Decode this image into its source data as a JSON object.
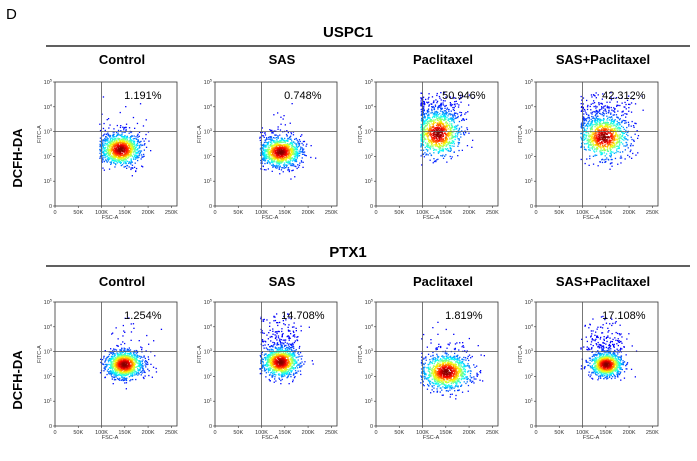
{
  "panel_letter": "D",
  "y_channel_label": "DCFH-DA",
  "colors": {
    "frame": "#333333",
    "gate": "#555555",
    "text": "#000000"
  },
  "chart_data": [
    {
      "type": "scatter",
      "group": "USPC1",
      "xlabel": "FSC-A",
      "ylabel": "FITC-A",
      "xticks": [
        "0",
        "50K",
        "100K",
        "150K",
        "200K",
        "250K"
      ],
      "yticks": [
        "0",
        "10^1",
        "10^2",
        "10^3",
        "10^4",
        "10^5"
      ],
      "xlim": [
        0,
        262144
      ],
      "plots": [
        {
          "condition": "Control",
          "percent": "1.191%",
          "cluster": {
            "x": 140000,
            "y_log": 2.3,
            "sx": 22000,
            "sy_log": 0.32,
            "tail": 0.03
          }
        },
        {
          "condition": "SAS",
          "percent": "0.748%",
          "cluster": {
            "x": 140000,
            "y_log": 2.2,
            "sx": 22000,
            "sy_log": 0.3,
            "tail": 0.02
          }
        },
        {
          "condition": "Paclitaxel",
          "percent": "50.946%",
          "cluster": {
            "x": 132000,
            "y_log": 2.95,
            "sx": 24000,
            "sy_log": 0.45,
            "tail": 0.25
          }
        },
        {
          "condition": "SAS+Paclitaxel",
          "percent": "42.312%",
          "cluster": {
            "x": 145000,
            "y_log": 2.8,
            "sx": 26000,
            "sy_log": 0.42,
            "tail": 0.2
          }
        }
      ]
    },
    {
      "type": "scatter",
      "group": "PTX1",
      "xlabel": "FSC-A",
      "ylabel": "FITC-A",
      "xticks": [
        "0",
        "50K",
        "100K",
        "150K",
        "200K",
        "250K"
      ],
      "yticks": [
        "0",
        "10^1",
        "10^2",
        "10^3",
        "10^4",
        "10^5"
      ],
      "xlim": [
        0,
        262144
      ],
      "plots": [
        {
          "condition": "Control",
          "percent": "1.254%",
          "cluster": {
            "x": 148000,
            "y_log": 2.5,
            "sx": 20000,
            "sy_log": 0.28,
            "tail": 0.03
          }
        },
        {
          "condition": "SAS",
          "percent": "14.708%",
          "cluster": {
            "x": 140000,
            "y_log": 2.6,
            "sx": 20000,
            "sy_log": 0.3,
            "tail": 0.15
          }
        },
        {
          "condition": "Paclitaxel",
          "percent": "1.819%",
          "cluster": {
            "x": 150000,
            "y_log": 2.2,
            "sx": 26000,
            "sy_log": 0.35,
            "tail": 0.04
          }
        },
        {
          "condition": "SAS+Paclitaxel",
          "percent": "17.108%",
          "cluster": {
            "x": 150000,
            "y_log": 2.5,
            "sx": 18000,
            "sy_log": 0.25,
            "tail": 0.14
          }
        }
      ]
    }
  ]
}
